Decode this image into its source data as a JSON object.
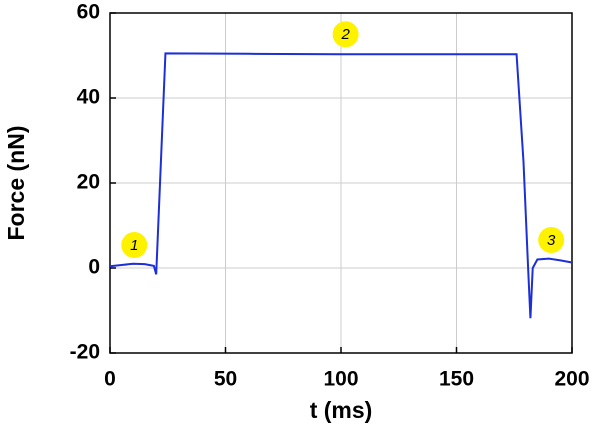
{
  "chart_data": {
    "type": "line",
    "xlabel": "t (ms)",
    "ylabel": "Force (nN)",
    "xlim": [
      0,
      200
    ],
    "xticks": [
      0,
      50,
      100,
      150,
      200
    ],
    "ylim": [
      -20,
      60
    ],
    "yticks": [
      -20,
      0,
      20,
      40,
      60
    ],
    "grid": true,
    "x": [
      0,
      5,
      10,
      15,
      19,
      20,
      24,
      60,
      100,
      140,
      176,
      179,
      181,
      182,
      183,
      185,
      190,
      195,
      200
    ],
    "series": [
      {
        "color": "#1c2fd8",
        "values": [
          0.4,
          0.7,
          1.0,
          0.9,
          0.5,
          -1.5,
          50.5,
          50.4,
          50.3,
          50.3,
          50.3,
          25,
          0,
          -11.8,
          0,
          2,
          2.2,
          1.8,
          1.3
        ]
      }
    ],
    "annotations": [
      {
        "text": "1",
        "x": 10.5,
        "y": 5.4
      },
      {
        "text": "2",
        "x": 102,
        "y": 55
      },
      {
        "text": "3",
        "x": 191,
        "y": 6.6
      }
    ],
    "annotation_color": "#fff200"
  }
}
